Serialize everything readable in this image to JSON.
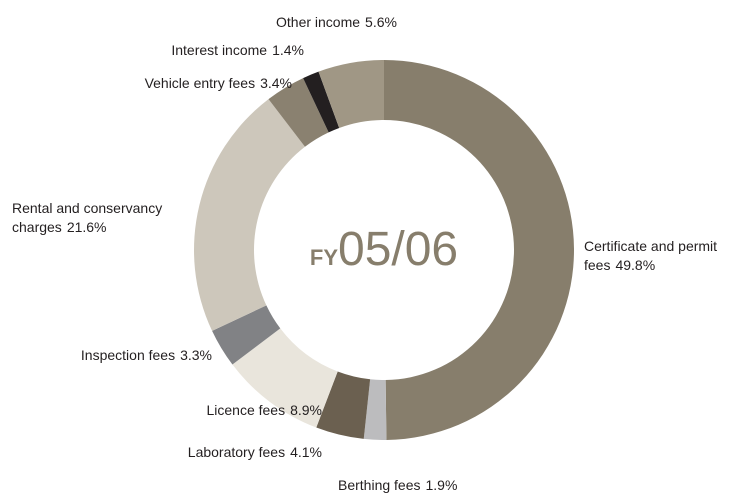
{
  "chart_data": {
    "type": "donut",
    "center": {
      "prefix": "FY",
      "text": "05/06"
    },
    "categories": [
      "Certificate and permit fees",
      "Berthing fees",
      "Laboratory fees",
      "Licence fees",
      "Inspection fees",
      "Rental and conservancy charges",
      "Vehicle entry fees",
      "Interest income",
      "Other income"
    ],
    "values": [
      49.8,
      1.9,
      4.1,
      8.9,
      3.3,
      21.6,
      3.4,
      1.4,
      5.6
    ],
    "value_labels": [
      "49.8%",
      "1.9%",
      "4.1%",
      "8.9%",
      "3.3%",
      "21.6%",
      "3.4%",
      "1.4%",
      "5.6%"
    ],
    "colors": [
      "#877e6c",
      "#bcbcbe",
      "#6b6050",
      "#e9e5dc",
      "#818285",
      "#cdc7bb",
      "#8a8170",
      "#231f20",
      "#a09785"
    ]
  }
}
